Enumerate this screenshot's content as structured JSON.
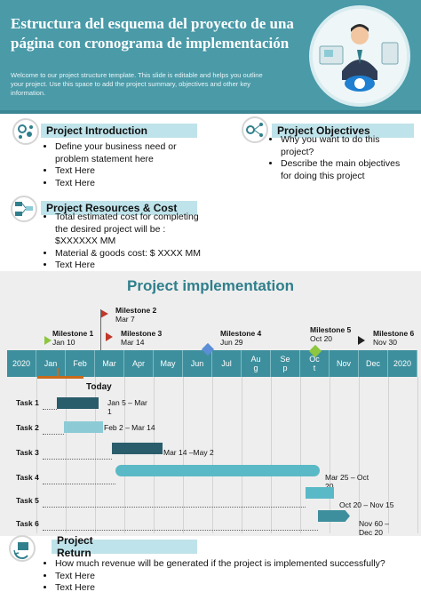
{
  "header": {
    "title": "Estructura del esquema del proyecto de una página con cronograma de implementación",
    "description": "Welcome to our project structure template. This slide is editable and helps you outline your project. Use this space to add the project summary, objectives and other key information."
  },
  "introduction": {
    "title": "Project Introduction",
    "items": [
      "Define your business need or problem statement here",
      "Text Here",
      "Text Here"
    ]
  },
  "objectives": {
    "title": "Project Objectives",
    "items": [
      "Why you want to do this project?",
      "Describe the main objectives for doing this project"
    ]
  },
  "resources": {
    "title": "Project Resources & Cost",
    "items": [
      "Total estimated cost for completing the desired project will be : $XXXXXX MM",
      "Material & goods cost: $ XXXX MM",
      "Text Here"
    ]
  },
  "implementation": {
    "title": "Project implementation",
    "months": [
      "2020",
      "Jan",
      "Feb",
      "Mar",
      "Apr",
      "May",
      "Jun",
      "Jul",
      "Aug",
      "Sep",
      "Oct",
      "Nov",
      "Dec",
      "2020"
    ],
    "today_label": "Today",
    "milestones": [
      {
        "name": "Milestone 1",
        "date": "Jan 10"
      },
      {
        "name": "Milestone 2",
        "date": "Mar 7"
      },
      {
        "name": "Milestone 3",
        "date": "Mar 14"
      },
      {
        "name": "Milestone 4",
        "date": "Jun 29"
      },
      {
        "name": "Milestone 5",
        "date": "Oct 20"
      },
      {
        "name": "Milestone 6",
        "date": "Nov 30"
      }
    ],
    "tasks": [
      {
        "name": "Task 1",
        "dates": "Jan 5 – Mar 1",
        "color": "#2a5d6b"
      },
      {
        "name": "Task 2",
        "dates": "Feb 2 – Mar 14",
        "color": "#8ccbd6"
      },
      {
        "name": "Task 3",
        "dates": "Mar 14 –May 2",
        "color": "#2a5d6b"
      },
      {
        "name": "Task 4",
        "dates": "Mar 25 – Oct 20",
        "color": "#5ab9c6"
      },
      {
        "name": "Task 5",
        "dates": "Oct 20 – Nov 15",
        "color": "#5ab9c6"
      },
      {
        "name": "Task 6",
        "dates": "Nov 60 – Dec 20",
        "color": "#3d8f9d"
      }
    ]
  },
  "return": {
    "title": "Project Return",
    "items": [
      "How much revenue will be generated if the project is implemented successfully?",
      "Text Here",
      "Text Here"
    ]
  },
  "icons": {
    "introduction": "gear-people-icon",
    "objectives": "network-nodes-icon",
    "resources": "org-chart-icon",
    "return": "box-cycle-icon",
    "hero": "businessman-cloud-icon"
  }
}
